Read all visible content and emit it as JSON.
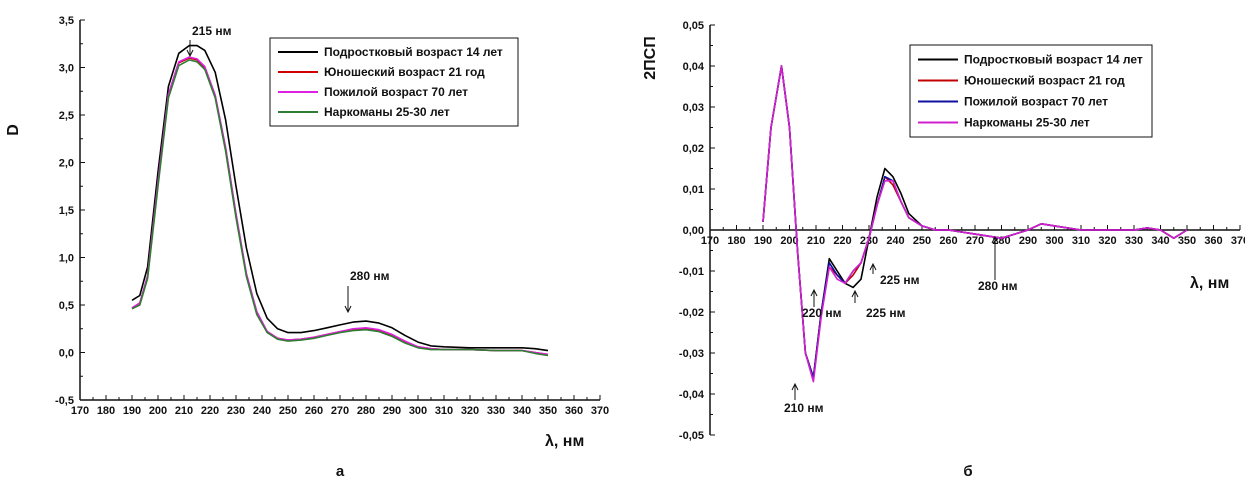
{
  "chart_data": [
    {
      "type": "line",
      "panel_label": "а",
      "ylabel": "D",
      "xlabel": "λ, нм",
      "xlim": [
        170,
        370
      ],
      "ylim": [
        -0.5,
        3.5
      ],
      "x_ticks": [
        "170",
        "180",
        "190",
        "200",
        "210",
        "220",
        "230",
        "240",
        "250",
        "260",
        "270",
        "280",
        "290",
        "300",
        "310",
        "320",
        "330",
        "340",
        "350",
        "360",
        "370"
      ],
      "y_ticks": [
        "-0,5",
        "0,0",
        "0,5",
        "1,0",
        "1,5",
        "2,0",
        "2,5",
        "3,0",
        "3,5"
      ],
      "legend_position": "top-right",
      "series": [
        {
          "name": "Подростковый возраст 14 лет",
          "color": "#000000",
          "x": [
            190,
            193,
            196,
            200,
            204,
            208,
            212,
            215,
            218,
            222,
            226,
            230,
            234,
            238,
            242,
            246,
            250,
            255,
            260,
            265,
            270,
            275,
            280,
            285,
            290,
            295,
            300,
            305,
            310,
            320,
            330,
            340,
            345,
            350
          ],
          "y": [
            0.55,
            0.6,
            0.9,
            1.9,
            2.8,
            3.15,
            3.23,
            3.23,
            3.18,
            2.95,
            2.45,
            1.75,
            1.1,
            0.62,
            0.36,
            0.25,
            0.21,
            0.21,
            0.23,
            0.26,
            0.29,
            0.32,
            0.33,
            0.31,
            0.26,
            0.18,
            0.11,
            0.07,
            0.06,
            0.05,
            0.05,
            0.05,
            0.04,
            0.02
          ]
        },
        {
          "name": "Юношеский возраст 21 год",
          "color": "#d00000",
          "x": [
            190,
            193,
            196,
            200,
            204,
            208,
            212,
            215,
            218,
            222,
            226,
            230,
            234,
            238,
            242,
            246,
            250,
            255,
            260,
            265,
            270,
            275,
            280,
            285,
            290,
            295,
            300,
            305,
            310,
            320,
            330,
            340,
            345,
            350
          ],
          "y": [
            0.47,
            0.52,
            0.8,
            1.78,
            2.7,
            3.05,
            3.1,
            3.08,
            3.0,
            2.7,
            2.15,
            1.45,
            0.82,
            0.42,
            0.22,
            0.15,
            0.13,
            0.14,
            0.16,
            0.19,
            0.22,
            0.24,
            0.25,
            0.23,
            0.18,
            0.11,
            0.06,
            0.04,
            0.03,
            0.03,
            0.02,
            0.02,
            0.0,
            -0.02
          ]
        },
        {
          "name": "Пожилой возраст 70 лет",
          "color": "#e020e0",
          "x": [
            190,
            193,
            196,
            200,
            204,
            208,
            212,
            215,
            218,
            222,
            226,
            230,
            234,
            238,
            242,
            246,
            250,
            255,
            260,
            265,
            270,
            275,
            280,
            285,
            290,
            295,
            300,
            305,
            310,
            320,
            330,
            340,
            345,
            350
          ],
          "y": [
            0.47,
            0.52,
            0.81,
            1.8,
            2.72,
            3.06,
            3.11,
            3.09,
            3.01,
            2.71,
            2.16,
            1.46,
            0.83,
            0.43,
            0.22,
            0.15,
            0.13,
            0.14,
            0.16,
            0.19,
            0.22,
            0.25,
            0.26,
            0.24,
            0.19,
            0.12,
            0.06,
            0.04,
            0.03,
            0.03,
            0.02,
            0.02,
            0.0,
            -0.02
          ]
        },
        {
          "name": "Наркоманы 25-30 лет",
          "color": "#2e7d32",
          "x": [
            190,
            193,
            196,
            200,
            204,
            208,
            212,
            215,
            218,
            222,
            226,
            230,
            234,
            238,
            242,
            246,
            250,
            255,
            260,
            265,
            270,
            275,
            280,
            285,
            290,
            295,
            300,
            305,
            310,
            320,
            330,
            340,
            345,
            350
          ],
          "y": [
            0.46,
            0.5,
            0.78,
            1.75,
            2.68,
            3.02,
            3.08,
            3.06,
            2.98,
            2.68,
            2.12,
            1.42,
            0.8,
            0.4,
            0.21,
            0.14,
            0.12,
            0.13,
            0.15,
            0.18,
            0.21,
            0.23,
            0.24,
            0.22,
            0.17,
            0.1,
            0.05,
            0.03,
            0.03,
            0.03,
            0.02,
            0.02,
            -0.01,
            -0.03
          ]
        }
      ],
      "annotations": [
        {
          "text": "215 нм",
          "x": 215,
          "y": 3.2
        },
        {
          "text": "280 нм",
          "x": 280,
          "y": 0.34
        }
      ]
    },
    {
      "type": "line",
      "panel_label": "б",
      "ylabel": "2ПСП",
      "xlabel": "λ, нм",
      "xlim": [
        170,
        370
      ],
      "ylim": [
        -0.05,
        0.05
      ],
      "x_ticks": [
        "170",
        "180",
        "190",
        "200",
        "210",
        "220",
        "230",
        "240",
        "250",
        "260",
        "270",
        "280",
        "290",
        "300",
        "310",
        "320",
        "330",
        "340",
        "350",
        "360",
        "370"
      ],
      "y_ticks": [
        "-0,05",
        "-0,04",
        "-0,03",
        "-0,02",
        "-0,01",
        "0,00",
        "0,01",
        "0,02",
        "0,03",
        "0,04",
        "0,05"
      ],
      "legend_position": "top-right",
      "series": [
        {
          "name": "Подростковый возраст 14 лет",
          "color": "#000000",
          "x": [
            190,
            193,
            197,
            200,
            203,
            206,
            209,
            212,
            215,
            218,
            221,
            224,
            227,
            230,
            233,
            236,
            239,
            242,
            245,
            250,
            255,
            260,
            270,
            280,
            290,
            295,
            300,
            310,
            320,
            330,
            335,
            340,
            345,
            350
          ],
          "y": [
            0.002,
            0.025,
            0.04,
            0.025,
            -0.005,
            -0.03,
            -0.036,
            -0.02,
            -0.007,
            -0.01,
            -0.013,
            -0.014,
            -0.012,
            -0.002,
            0.008,
            0.015,
            0.013,
            0.009,
            0.004,
            0.001,
            0.0,
            0.0,
            -0.001,
            -0.002,
            0.0,
            0.0015,
            0.001,
            0.0,
            0.0,
            0.0,
            0.0005,
            0.0,
            -0.002,
            0.0
          ]
        },
        {
          "name": "Юношеский возраст 21 год",
          "color": "#c00000",
          "x": [
            190,
            193,
            197,
            200,
            203,
            206,
            209,
            212,
            215,
            218,
            221,
            224,
            227,
            230,
            233,
            236,
            239,
            242,
            245,
            250,
            255,
            260,
            270,
            280,
            290,
            295,
            300,
            310,
            320,
            330,
            335,
            340,
            345,
            350
          ],
          "y": [
            0.002,
            0.025,
            0.04,
            0.025,
            -0.005,
            -0.03,
            -0.036,
            -0.02,
            -0.009,
            -0.011,
            -0.013,
            -0.011,
            -0.008,
            -0.002,
            0.006,
            0.013,
            0.011,
            0.007,
            0.003,
            0.001,
            0.0,
            0.0,
            -0.001,
            -0.002,
            0.0,
            0.0015,
            0.001,
            0.0,
            0.0,
            0.0,
            0.0005,
            0.0,
            -0.002,
            0.0
          ]
        },
        {
          "name": "Пожилой возраст 70 лет",
          "color": "#1010a0",
          "x": [
            190,
            193,
            197,
            200,
            203,
            206,
            209,
            212,
            215,
            218,
            221,
            224,
            227,
            230,
            233,
            236,
            239,
            242,
            245,
            250,
            255,
            260,
            270,
            280,
            290,
            295,
            300,
            310,
            320,
            330,
            335,
            340,
            345,
            350
          ],
          "y": [
            0.002,
            0.025,
            0.04,
            0.025,
            -0.005,
            -0.03,
            -0.036,
            -0.02,
            -0.008,
            -0.011,
            -0.013,
            -0.01,
            -0.008,
            -0.002,
            0.006,
            0.013,
            0.012,
            0.007,
            0.003,
            0.001,
            0.0,
            0.0,
            -0.001,
            -0.002,
            0.0,
            0.0015,
            0.001,
            0.0,
            0.0,
            0.0,
            0.0005,
            0.0,
            -0.002,
            0.0
          ]
        },
        {
          "name": "Наркоманы 25-30 лет",
          "color": "#d020d0",
          "x": [
            190,
            193,
            197,
            200,
            203,
            206,
            209,
            212,
            215,
            218,
            221,
            224,
            227,
            230,
            233,
            236,
            239,
            242,
            245,
            250,
            255,
            260,
            270,
            280,
            290,
            295,
            300,
            310,
            320,
            330,
            335,
            340,
            345,
            350
          ],
          "y": [
            0.002,
            0.025,
            0.04,
            0.025,
            -0.005,
            -0.03,
            -0.037,
            -0.021,
            -0.009,
            -0.012,
            -0.013,
            -0.01,
            -0.008,
            -0.002,
            0.006,
            0.012,
            0.012,
            0.007,
            0.003,
            0.001,
            0.0,
            0.0,
            -0.001,
            -0.002,
            0.0,
            0.0015,
            0.001,
            0.0,
            0.0,
            0.0,
            0.0005,
            0.0,
            -0.002,
            0.0
          ]
        }
      ],
      "annotations": [
        {
          "text": "210 нм",
          "x": 207,
          "y": -0.037
        },
        {
          "text": "220 нм",
          "x": 219,
          "y": -0.014
        },
        {
          "text": "225 нм",
          "x": 225,
          "y": -0.014
        },
        {
          "text": "225 нм",
          "x": 225,
          "y": -0.01
        },
        {
          "text": "280 нм",
          "x": 280,
          "y": -0.002
        }
      ]
    }
  ]
}
